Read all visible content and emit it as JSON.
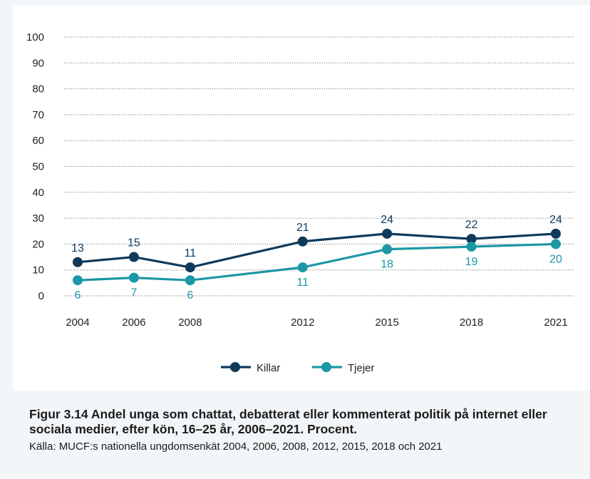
{
  "figure": {
    "caption_title": "Figur 3.14 Andel unga som chattat, debatterat eller kommenterat politik på internet eller sociala medier, efter kön, 16–25 år, 2006–2021. Procent.",
    "source": "Källa: MUCF:s nationella ungdomsenkät 2004, 2006, 2008, 2012, 2015, 2018 och 2021"
  },
  "chart_data": {
    "type": "line",
    "x": [
      2004,
      2006,
      2008,
      2012,
      2015,
      2018,
      2021
    ],
    "ylim": [
      0,
      100
    ],
    "yticks": [
      0,
      10,
      20,
      30,
      40,
      50,
      60,
      70,
      80,
      90,
      100
    ],
    "grid": "horizontal dotted",
    "legend_position": "bottom-center",
    "series": [
      {
        "name": "Killar",
        "color": "#0e3a5c",
        "values": [
          13,
          15,
          11,
          21,
          24,
          22,
          24
        ],
        "labels": [
          "13",
          "15",
          "11",
          "21",
          "24",
          "22",
          "24"
        ],
        "label_side": "above"
      },
      {
        "name": "Tjejer",
        "color": "#1c97a6",
        "values": [
          6,
          7,
          6,
          11,
          18,
          19,
          20
        ],
        "labels": [
          "6",
          "7",
          "6",
          "11",
          "18",
          "19",
          "20"
        ],
        "label_side": "below"
      }
    ]
  }
}
